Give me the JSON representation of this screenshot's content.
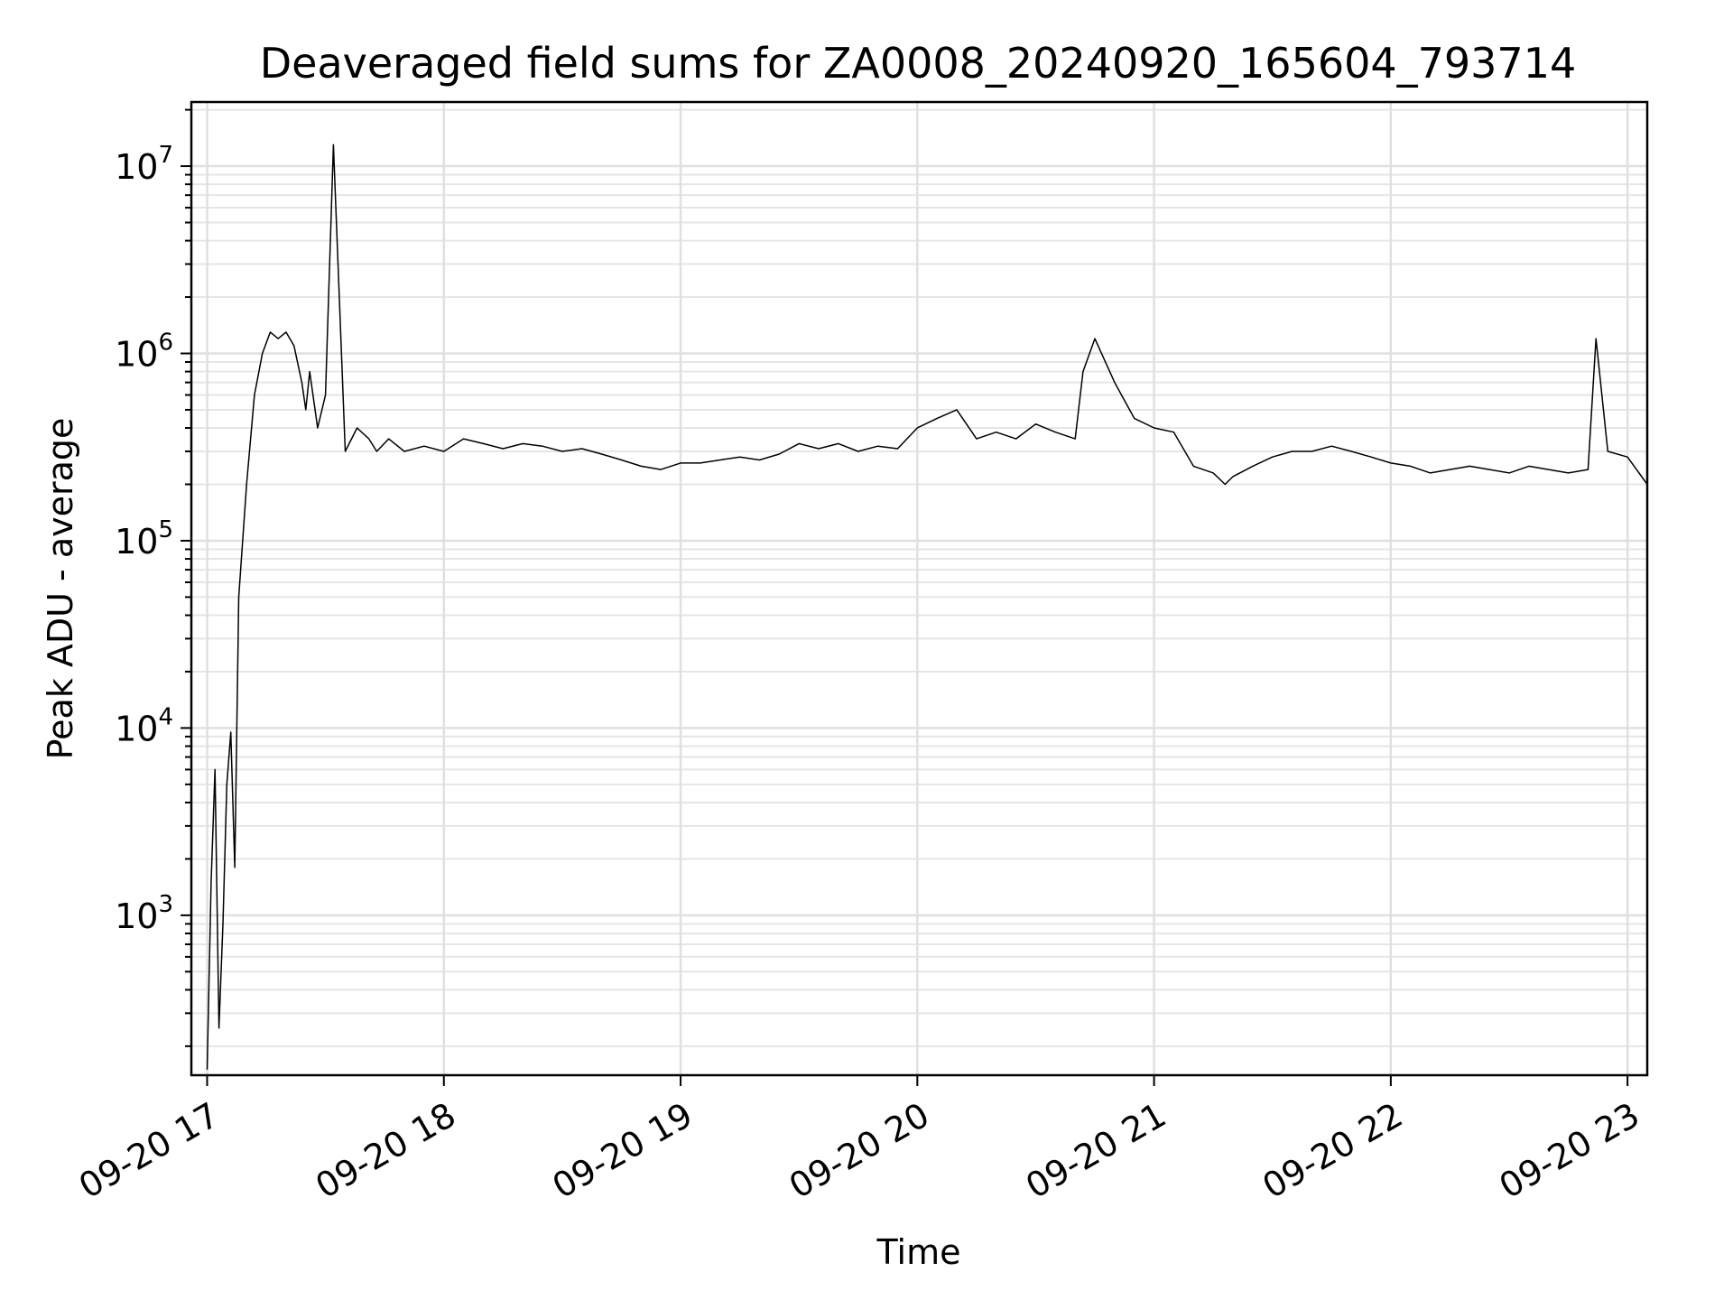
{
  "chart_data": {
    "type": "line",
    "title": "Deaveraged field sums for ZA0008_20240920_165604_793714",
    "xlabel": "Time",
    "ylabel": "Peak ADU - average",
    "yscale": "log",
    "ylim": [
      140,
      22000000
    ],
    "xlim": [
      "2024-09-20 16:56",
      "2024-09-20 23:05"
    ],
    "grid": true,
    "line_color": "#000000",
    "x_ticks": [
      {
        "value": "2024-09-20 17:00",
        "label": "09-20 17"
      },
      {
        "value": "2024-09-20 18:00",
        "label": "09-20 18"
      },
      {
        "value": "2024-09-20 19:00",
        "label": "09-20 19"
      },
      {
        "value": "2024-09-20 20:00",
        "label": "09-20 20"
      },
      {
        "value": "2024-09-20 21:00",
        "label": "09-20 21"
      },
      {
        "value": "2024-09-20 22:00",
        "label": "09-20 22"
      },
      {
        "value": "2024-09-20 23:00",
        "label": "09-20 23"
      }
    ],
    "y_ticks": [
      {
        "value": 1000,
        "base": "10",
        "exp": "3"
      },
      {
        "value": 10000,
        "base": "10",
        "exp": "4"
      },
      {
        "value": 100000,
        "base": "10",
        "exp": "5"
      },
      {
        "value": 1000000,
        "base": "10",
        "exp": "6"
      },
      {
        "value": 10000000,
        "base": "10",
        "exp": "7"
      }
    ],
    "series": [
      {
        "x": [
          "2024-09-20 17:00",
          "2024-09-20 17:01",
          "2024-09-20 17:02",
          "2024-09-20 17:03",
          "2024-09-20 17:04",
          "2024-09-20 17:05",
          "2024-09-20 17:06",
          "2024-09-20 17:07",
          "2024-09-20 17:08",
          "2024-09-20 17:10",
          "2024-09-20 17:12",
          "2024-09-20 17:14",
          "2024-09-20 17:16",
          "2024-09-20 17:18",
          "2024-09-20 17:20",
          "2024-09-20 17:22",
          "2024-09-20 17:24",
          "2024-09-20 17:25",
          "2024-09-20 17:26",
          "2024-09-20 17:28",
          "2024-09-20 17:30",
          "2024-09-20 17:32",
          "2024-09-20 17:35",
          "2024-09-20 17:38",
          "2024-09-20 17:41",
          "2024-09-20 17:43",
          "2024-09-20 17:46",
          "2024-09-20 17:50",
          "2024-09-20 17:55",
          "2024-09-20 18:00",
          "2024-09-20 18:05",
          "2024-09-20 18:10",
          "2024-09-20 18:15",
          "2024-09-20 18:20",
          "2024-09-20 18:25",
          "2024-09-20 18:30",
          "2024-09-20 18:35",
          "2024-09-20 18:40",
          "2024-09-20 18:45",
          "2024-09-20 18:50",
          "2024-09-20 18:55",
          "2024-09-20 19:00",
          "2024-09-20 19:05",
          "2024-09-20 19:10",
          "2024-09-20 19:15",
          "2024-09-20 19:20",
          "2024-09-20 19:25",
          "2024-09-20 19:30",
          "2024-09-20 19:35",
          "2024-09-20 19:40",
          "2024-09-20 19:45",
          "2024-09-20 19:50",
          "2024-09-20 19:55",
          "2024-09-20 20:00",
          "2024-09-20 20:05",
          "2024-09-20 20:10",
          "2024-09-20 20:15",
          "2024-09-20 20:20",
          "2024-09-20 20:25",
          "2024-09-20 20:30",
          "2024-09-20 20:35",
          "2024-09-20 20:40",
          "2024-09-20 20:42",
          "2024-09-20 20:45",
          "2024-09-20 20:50",
          "2024-09-20 20:55",
          "2024-09-20 21:00",
          "2024-09-20 21:05",
          "2024-09-20 21:10",
          "2024-09-20 21:15",
          "2024-09-20 21:18",
          "2024-09-20 21:20",
          "2024-09-20 21:25",
          "2024-09-20 21:30",
          "2024-09-20 21:35",
          "2024-09-20 21:40",
          "2024-09-20 21:45",
          "2024-09-20 21:50",
          "2024-09-20 21:55",
          "2024-09-20 22:00",
          "2024-09-20 22:05",
          "2024-09-20 22:10",
          "2024-09-20 22:15",
          "2024-09-20 22:20",
          "2024-09-20 22:25",
          "2024-09-20 22:30",
          "2024-09-20 22:35",
          "2024-09-20 22:40",
          "2024-09-20 22:45",
          "2024-09-20 22:50",
          "2024-09-20 22:52",
          "2024-09-20 22:55",
          "2024-09-20 23:00",
          "2024-09-20 23:05"
        ],
        "y": [
          150,
          1500,
          6000,
          250,
          900,
          5000,
          9500,
          1800,
          50000,
          200000,
          600000,
          1000000,
          1300000,
          1200000,
          1300000,
          1100000,
          700000,
          500000,
          800000,
          400000,
          600000,
          13000000,
          300000,
          400000,
          350000,
          300000,
          350000,
          300000,
          320000,
          300000,
          350000,
          330000,
          310000,
          330000,
          320000,
          300000,
          310000,
          290000,
          270000,
          250000,
          240000,
          260000,
          260000,
          270000,
          280000,
          270000,
          290000,
          330000,
          310000,
          330000,
          300000,
          320000,
          310000,
          400000,
          450000,
          500000,
          350000,
          380000,
          350000,
          420000,
          380000,
          350000,
          800000,
          1200000,
          700000,
          450000,
          400000,
          380000,
          250000,
          230000,
          200000,
          220000,
          250000,
          280000,
          300000,
          300000,
          320000,
          300000,
          280000,
          260000,
          250000,
          230000,
          240000,
          250000,
          240000,
          230000,
          250000,
          240000,
          230000,
          240000,
          1200000,
          300000,
          280000,
          200000
        ]
      }
    ]
  }
}
